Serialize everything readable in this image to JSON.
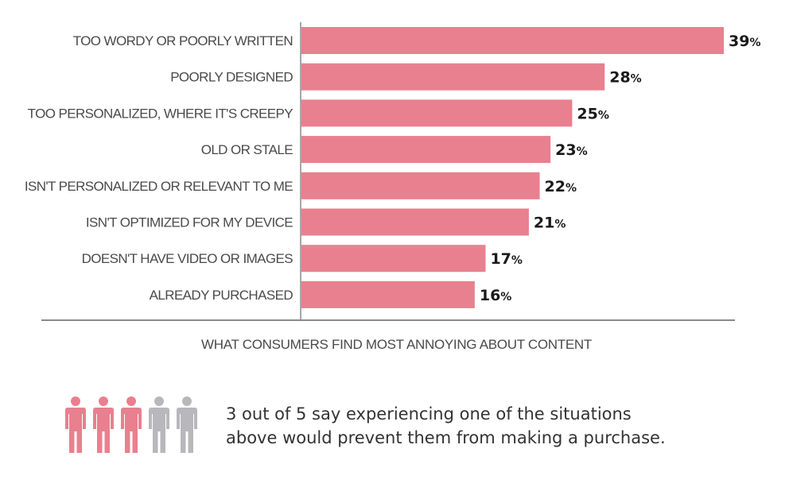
{
  "chart_data": {
    "type": "bar",
    "orientation": "horizontal",
    "categories": [
      "TOO WORDY OR POORLY WRITTEN",
      "POORLY DESIGNED",
      "TOO PERSONALIZED, WHERE IT'S CREEPY",
      "OLD OR STALE",
      "ISN'T PERSONALIZED OR RELEVANT TO ME",
      "ISN'T OPTIMIZED FOR MY DEVICE",
      "DOESN'T HAVE VIDEO OR IMAGES",
      "ALREADY PURCHASED"
    ],
    "values": [
      39,
      28,
      25,
      23,
      22,
      21,
      17,
      16
    ],
    "value_suffix": "%",
    "xlabel": "WHAT CONSUMERS FIND MOST ANNOYING ABOUT CONTENT",
    "ylabel": "",
    "xlim": [
      0,
      39
    ],
    "grid": false,
    "bar_color": "#e8808f"
  },
  "infographic": {
    "people_total": 5,
    "people_highlighted": 3,
    "highlight_color": "#e8808f",
    "muted_color": "#b8b8bc",
    "stat_line1": "3 out of 5 say experiencing one of the situations",
    "stat_line2": "above would prevent them from making a purchase."
  }
}
